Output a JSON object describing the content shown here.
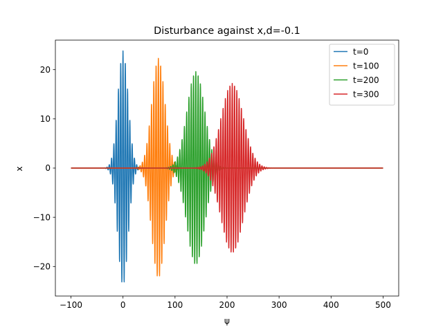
{
  "chart_data": {
    "type": "line",
    "title": "Disturbance against x,d=-0.1",
    "xlabel": "ψ",
    "ylabel": "x",
    "xlim": [
      -130,
      530
    ],
    "ylim": [
      -26,
      26
    ],
    "xticks": [
      -100,
      0,
      100,
      200,
      300,
      400,
      500
    ],
    "yticks": [
      -20,
      -10,
      0,
      10,
      20
    ],
    "legend_position": "top-right",
    "grid": false,
    "x_range": [
      -100,
      500
    ],
    "series": [
      {
        "name": "t=0",
        "color": "#1f77b4",
        "center": 0,
        "amplitude": 23.8,
        "envelope_width": 14,
        "period": 4.4
      },
      {
        "name": "t=100",
        "color": "#ff7f0e",
        "center": 68,
        "amplitude": 22.3,
        "envelope_width": 18,
        "period": 4.4
      },
      {
        "name": "t=200",
        "color": "#2ca02c",
        "center": 140,
        "amplitude": 19.6,
        "envelope_width": 24,
        "period": 4.4
      },
      {
        "name": "t=300",
        "color": "#d62728",
        "center": 210,
        "amplitude": 17.2,
        "envelope_width": 30,
        "period": 4.4
      }
    ]
  }
}
